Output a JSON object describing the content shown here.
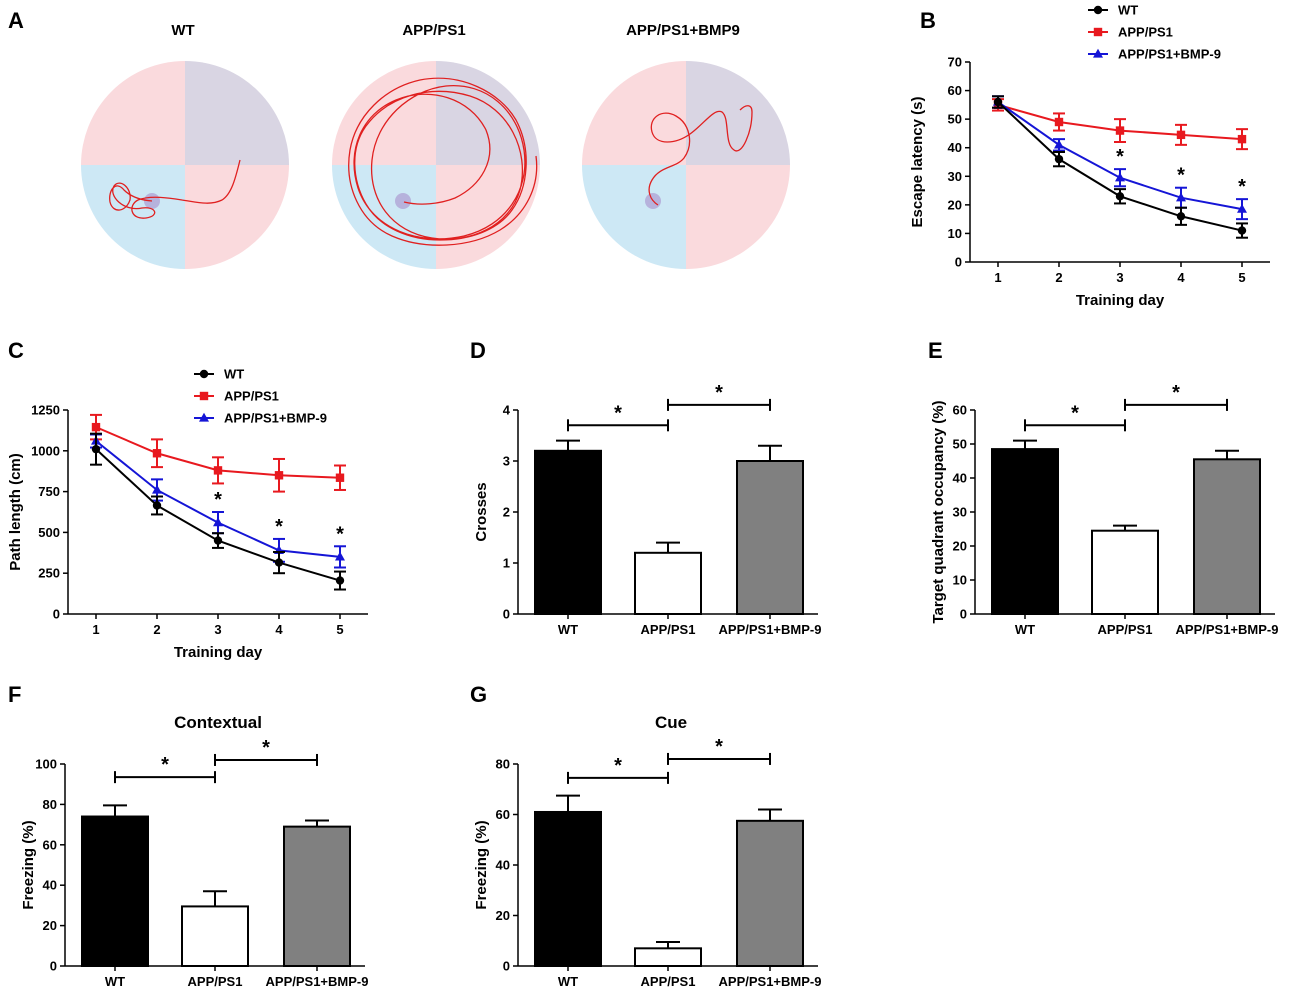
{
  "colors": {
    "wt": "#000000",
    "app": "#e8191f",
    "bmp": "#1515d6",
    "bar_wt": "#000000",
    "bar_app": "#ffffff",
    "bar_bmp": "#808080",
    "quad_pink": "#fadadd",
    "quad_purple": "#d9d5e3",
    "quad_blue": "#cde8f5",
    "path": "#e02020",
    "platform": "#b6b2dc"
  },
  "panel_labels": [
    "A",
    "B",
    "C",
    "D",
    "E",
    "F",
    "G"
  ],
  "maze": {
    "titles": [
      "WT",
      "APP/PS1",
      "APP/PS1+BMP9"
    ]
  },
  "charts": {
    "B": {
      "type": "line",
      "x": [
        1,
        2,
        3,
        4,
        5
      ],
      "xlabel": "Training day",
      "ylabel": "Escape latency (s)",
      "ylim": [
        0,
        70
      ],
      "yticks": [
        0,
        10,
        20,
        30,
        40,
        50,
        60,
        70
      ],
      "series": [
        {
          "name": "WT",
          "values": [
            56,
            36,
            23,
            16,
            11
          ],
          "err": [
            2,
            2.5,
            2.5,
            3,
            2.5
          ],
          "marker": "circle",
          "color": "#000000"
        },
        {
          "name": "APP/PS1",
          "values": [
            55,
            49,
            46,
            44.5,
            43
          ],
          "err": [
            2,
            3,
            4,
            3.5,
            3.5
          ],
          "marker": "square",
          "color": "#e8191f"
        },
        {
          "name": "APP/PS1+BMP-9",
          "values": [
            56,
            41,
            29.5,
            22.5,
            18.5
          ],
          "err": [
            2,
            2,
            3,
            3.5,
            3.5
          ],
          "marker": "triangle",
          "color": "#1515d6"
        }
      ],
      "stars": [
        {
          "x": 3,
          "label": "*"
        },
        {
          "x": 4,
          "label": "*"
        },
        {
          "x": 5,
          "label": "*"
        }
      ]
    },
    "C": {
      "type": "line",
      "x": [
        1,
        2,
        3,
        4,
        5
      ],
      "xlabel": "Training day",
      "ylabel": "Path length (cm)",
      "ylim": [
        0,
        1250
      ],
      "yticks": [
        0,
        250,
        500,
        750,
        1000,
        1250
      ],
      "series": [
        {
          "name": "WT",
          "values": [
            1010,
            665,
            450,
            315,
            205
          ],
          "err": [
            95,
            55,
            45,
            65,
            55
          ],
          "marker": "circle",
          "color": "#000000"
        },
        {
          "name": "APP/PS1",
          "values": [
            1145,
            985,
            880,
            850,
            835
          ],
          "err": [
            75,
            85,
            80,
            100,
            75
          ],
          "marker": "square",
          "color": "#e8191f"
        },
        {
          "name": "APP/PS1+BMP-9",
          "values": [
            1060,
            760,
            560,
            390,
            350
          ],
          "err": [
            40,
            65,
            65,
            70,
            65
          ],
          "marker": "triangle",
          "color": "#1515d6"
        }
      ],
      "stars": [
        {
          "x": 3,
          "label": "*"
        },
        {
          "x": 4,
          "label": "*"
        },
        {
          "x": 5,
          "label": "*"
        }
      ]
    },
    "D": {
      "type": "bar",
      "title": "",
      "categories": [
        "WT",
        "APP/PS1",
        "APP/PS1+BMP-9"
      ],
      "values": [
        3.2,
        1.2,
        3.0
      ],
      "err": [
        0.2,
        0.2,
        0.3
      ],
      "ylabel": "Crosses",
      "ylim": [
        0,
        4
      ],
      "yticks": [
        0,
        1,
        2,
        3,
        4
      ],
      "brackets": [
        {
          "from": 0,
          "to": 1,
          "y": 3.7,
          "label": "*"
        },
        {
          "from": 1,
          "to": 2,
          "y": 4.1,
          "label": "*"
        }
      ]
    },
    "E": {
      "type": "bar",
      "title": "",
      "categories": [
        "WT",
        "APP/PS1",
        "APP/PS1+BMP-9"
      ],
      "values": [
        48.5,
        24.5,
        45.5
      ],
      "err": [
        2.5,
        1.5,
        2.5
      ],
      "ylabel": "Target quadrant occupancy (%)",
      "ylim": [
        0,
        60
      ],
      "yticks": [
        0,
        10,
        20,
        30,
        40,
        50,
        60
      ],
      "brackets": [
        {
          "from": 0,
          "to": 1,
          "y": 55.5,
          "label": "*"
        },
        {
          "from": 1,
          "to": 2,
          "y": 61.5,
          "label": "*"
        }
      ]
    },
    "F": {
      "type": "bar",
      "title": "Contextual",
      "categories": [
        "WT",
        "APP/PS1",
        "APP/PS1+BMP-9"
      ],
      "values": [
        74,
        29.5,
        69
      ],
      "err": [
        5.5,
        7.5,
        3
      ],
      "ylabel": "Freezing (%)",
      "ylim": [
        0,
        100
      ],
      "yticks": [
        0,
        20,
        40,
        60,
        80,
        100
      ],
      "brackets": [
        {
          "from": 0,
          "to": 1,
          "y": 93.5,
          "label": "*"
        },
        {
          "from": 1,
          "to": 2,
          "y": 102,
          "label": "*"
        }
      ]
    },
    "G": {
      "type": "bar",
      "title": "Cue",
      "categories": [
        "WT",
        "APP/PS1",
        "APP/PS1+BMP-9"
      ],
      "values": [
        61,
        7,
        57.5
      ],
      "err": [
        6.5,
        2.5,
        4.5
      ],
      "ylabel": "Freezing (%)",
      "ylim": [
        0,
        80
      ],
      "yticks": [
        0,
        20,
        40,
        60,
        80
      ],
      "brackets": [
        {
          "from": 0,
          "to": 1,
          "y": 74.5,
          "label": "*"
        },
        {
          "from": 1,
          "to": 2,
          "y": 82,
          "label": "*"
        }
      ]
    }
  }
}
